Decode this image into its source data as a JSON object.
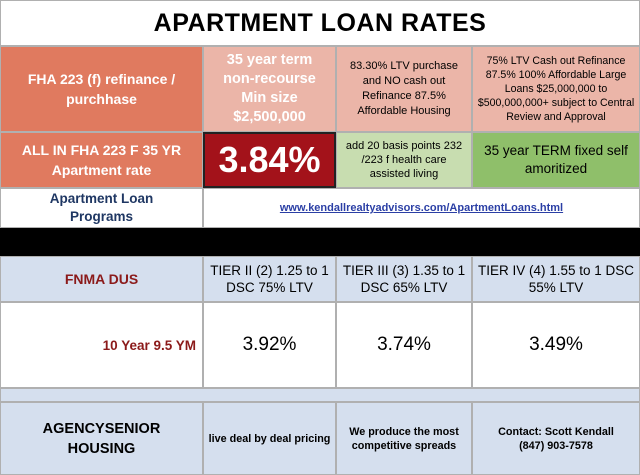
{
  "title": "APARTMENT LOAN RATES",
  "fha": {
    "program_label": "FHA 223 (f) refinance / purchhase",
    "term_info": "35 year term non-recourse Min size $2,500,000",
    "ltv_info": "83.30% LTV purchase and NO cash out Refinance 87.5% Affordable Housing",
    "cash_out_info": "75% LTV Cash out Refinance 87.5% 100% Affordable Large Loans $25,000,000 to $500,000,000+ subject to Central Review and Approval",
    "rate_label": "ALL IN FHA 223 F 35 YR Apartment rate",
    "rate_value": "3.84%",
    "health_care_note": "add 20 basis points 232 /223 f health care assisted living",
    "term_note": "35 year TERM fixed self amoritized"
  },
  "programs": {
    "label": "Apartment Loan Programs",
    "link": "www.kendallrealtyadvisors.com/ApartmentLoans.html"
  },
  "fnma": {
    "label": "FNMA DUS",
    "tiers": [
      "TIER II (2) 1.25 to 1 DSC 75% LTV",
      "TIER III (3) 1.35 to 1 DSC 65% LTV",
      "TIER IV (4) 1.55 to 1 DSC 55% LTV"
    ],
    "term_label": "10 Year 9.5 YM",
    "rates": [
      "3.92%",
      "3.74%",
      "3.49%"
    ]
  },
  "agency": {
    "label": "AGENCYSENIOR HOUSING",
    "deal_note": "live deal by deal pricing",
    "spread_note": "We produce the most competitive spreads",
    "contact": "Contact: Scott Kendall (847) 903-7578"
  }
}
